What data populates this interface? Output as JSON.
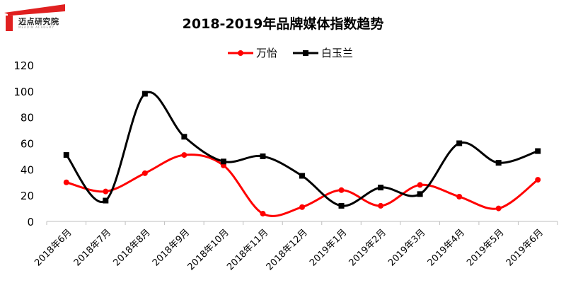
{
  "logo": {
    "text": "迈点研究院",
    "subtext": "MEADIN ACADEMY",
    "color": "#e02020"
  },
  "chart_data": {
    "type": "line",
    "title": "2018-2019年品牌媒体指数趋势",
    "categories": [
      "2018年6月",
      "2018年7月",
      "2018年8月",
      "2018年9月",
      "2018年10月",
      "2018年11月",
      "2018年12月",
      "2019年1月",
      "2019年2月",
      "2019年3月",
      "2019年4月",
      "2019年5月",
      "2019年6月"
    ],
    "series": [
      {
        "name": "万怡",
        "color": "#ff0000",
        "marker": "circle",
        "values": [
          30,
          23,
          37,
          51,
          43,
          6,
          11,
          24,
          12,
          28,
          19,
          10,
          32
        ]
      },
      {
        "name": "白玉兰",
        "color": "#000000",
        "marker": "square",
        "values": [
          51,
          16,
          98,
          65,
          46,
          50,
          35,
          12,
          26,
          21,
          60,
          45,
          54
        ]
      }
    ],
    "ylim": [
      0,
      120
    ],
    "yticks": [
      0,
      20,
      40,
      60,
      80,
      100,
      120
    ],
    "xlabel": "",
    "ylabel": "",
    "grid": false,
    "legend": "top-center",
    "smooth": true
  }
}
